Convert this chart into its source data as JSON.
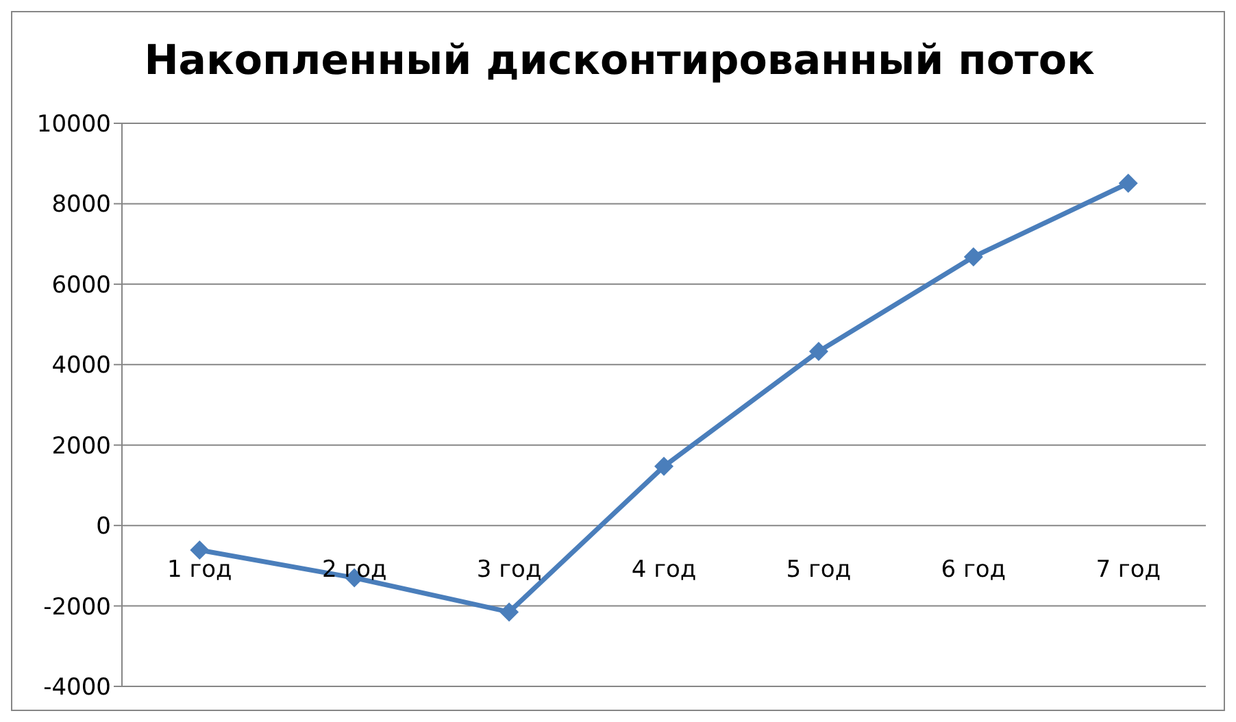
{
  "chart_data": {
    "type": "line",
    "title": "Накопленный дисконтированный поток",
    "categories": [
      "1 год",
      "2 год",
      "3 год",
      "4 год",
      "5 год",
      "6 год",
      "7 год"
    ],
    "series": [
      {
        "color": "#4a7ebb",
        "values": [
          -610,
          -1300,
          -2150,
          1470,
          4330,
          6680,
          8510
        ]
      }
    ],
    "ylim": [
      -4000,
      10000
    ],
    "yticks": [
      -4000,
      -2000,
      0,
      2000,
      4000,
      6000,
      8000,
      10000
    ],
    "grid": "y",
    "legend": false,
    "marker": "diamond",
    "line_style": "solid"
  }
}
